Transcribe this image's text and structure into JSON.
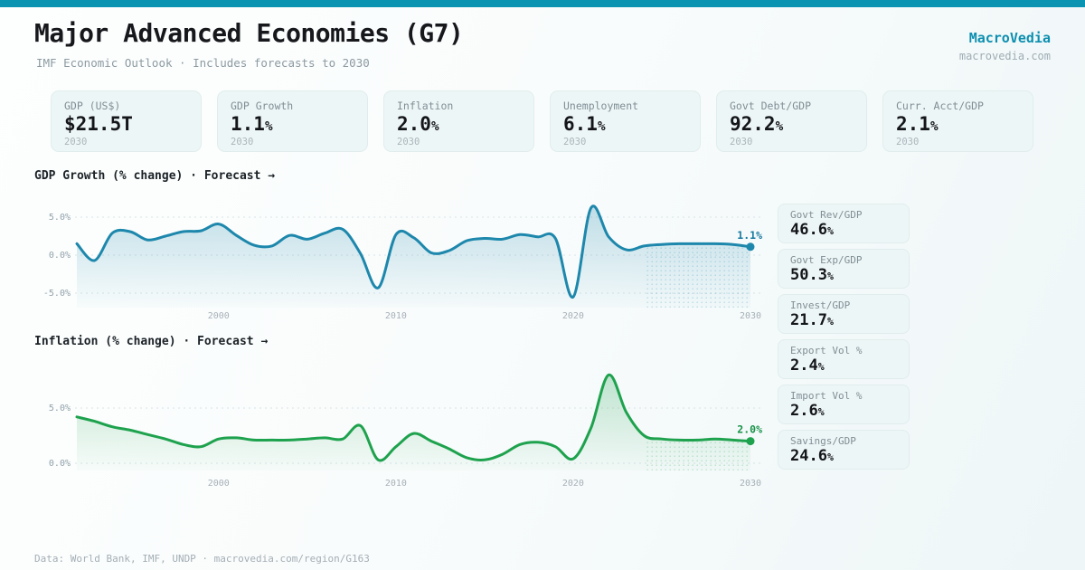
{
  "page": {
    "title": "Major Advanced Economies (G7)",
    "subtitle": "IMF Economic Outlook · Includes forecasts to 2030",
    "accent_color": "#0b93b2",
    "footer": "Data: World Bank, IMF, UNDP · macrovedia.com/region/G163"
  },
  "brand": {
    "name": "MacroVedia",
    "site": "macrovedia.com"
  },
  "stats": [
    {
      "label": "GDP (US$)",
      "value": "$21.5T",
      "year": "2030"
    },
    {
      "label": "GDP Growth",
      "value": "1.1%",
      "year": "2030"
    },
    {
      "label": "Inflation",
      "value": "2.0%",
      "year": "2030"
    },
    {
      "label": "Unemployment",
      "value": "6.1%",
      "year": "2030"
    },
    {
      "label": "Govt Debt/GDP",
      "value": "92.2%",
      "year": "2030"
    },
    {
      "label": "Curr. Acct/GDP",
      "value": "2.1%",
      "year": "2030"
    }
  ],
  "side_stats": [
    {
      "label": "Govt Rev/GDP",
      "value": "46.6%"
    },
    {
      "label": "Govt Exp/GDP",
      "value": "50.3%"
    },
    {
      "label": "Invest/GDP",
      "value": "21.7%"
    },
    {
      "label": "Export Vol %",
      "value": "2.4%"
    },
    {
      "label": "Import Vol %",
      "value": "2.6%"
    },
    {
      "label": "Savings/GDP",
      "value": "24.6%"
    }
  ],
  "chart_data": [
    {
      "type": "area",
      "title": "GDP Growth (% change) · Forecast →",
      "ylabel": "% change",
      "grid": true,
      "legend": false,
      "ylim": [
        -9,
        8
      ],
      "line_color": "#1d87ac",
      "label_color": "#14789f",
      "end_label": "1.1%",
      "forecast_start": 2024,
      "y_ticks": [
        {
          "label": "5.0%",
          "value": 5
        },
        {
          "label": "0.0%",
          "value": 0
        },
        {
          "label": "-5.0%",
          "value": -5
        }
      ],
      "x_ticks": [
        2000,
        2010,
        2020,
        2030
      ],
      "x": [
        1992,
        1993,
        1994,
        1995,
        1996,
        1997,
        1998,
        1999,
        2000,
        2001,
        2002,
        2003,
        2004,
        2005,
        2006,
        2007,
        2008,
        2009,
        2010,
        2011,
        2012,
        2013,
        2014,
        2015,
        2016,
        2017,
        2018,
        2019,
        2020,
        2021,
        2022,
        2023,
        2024,
        2025,
        2026,
        2027,
        2028,
        2029,
        2030
      ],
      "values": [
        1.5,
        -0.7,
        2.9,
        3.1,
        2.0,
        2.5,
        3.1,
        3.2,
        4.1,
        2.6,
        1.3,
        1.2,
        2.6,
        2.1,
        2.9,
        3.4,
        0.2,
        -4.3,
        2.7,
        2.3,
        0.3,
        0.6,
        1.9,
        2.2,
        2.1,
        2.7,
        2.4,
        2.2,
        -5.5,
        6.2,
        2.4,
        0.7,
        1.2,
        1.4,
        1.5,
        1.5,
        1.5,
        1.4,
        1.1
      ]
    },
    {
      "type": "area",
      "title": "Inflation (% change) · Forecast →",
      "ylabel": "% change",
      "grid": true,
      "legend": false,
      "ylim": [
        -2.5,
        9.8
      ],
      "line_color": "#1ea24e",
      "label_color": "#179247",
      "end_label": "2.0%",
      "forecast_start": 2024,
      "y_ticks": [
        {
          "label": "5.0%",
          "value": 5
        },
        {
          "label": "0.0%",
          "value": 0
        }
      ],
      "x_ticks": [
        2000,
        2010,
        2020,
        2030
      ],
      "x": [
        1992,
        1993,
        1994,
        1995,
        1996,
        1997,
        1998,
        1999,
        2000,
        2001,
        2002,
        2003,
        2004,
        2005,
        2006,
        2007,
        2008,
        2009,
        2010,
        2011,
        2012,
        2013,
        2014,
        2015,
        2016,
        2017,
        2018,
        2019,
        2020,
        2021,
        2022,
        2023,
        2024,
        2025,
        2026,
        2027,
        2028,
        2029,
        2030
      ],
      "values": [
        4.2,
        3.8,
        3.3,
        3.0,
        2.6,
        2.2,
        1.7,
        1.5,
        2.2,
        2.3,
        2.1,
        2.1,
        2.1,
        2.2,
        2.3,
        2.2,
        3.4,
        0.3,
        1.5,
        2.7,
        2.0,
        1.3,
        0.5,
        0.3,
        0.8,
        1.7,
        1.9,
        1.5,
        0.4,
        3.2,
        8.0,
        4.6,
        2.5,
        2.2,
        2.1,
        2.1,
        2.2,
        2.1,
        2.0
      ]
    }
  ]
}
